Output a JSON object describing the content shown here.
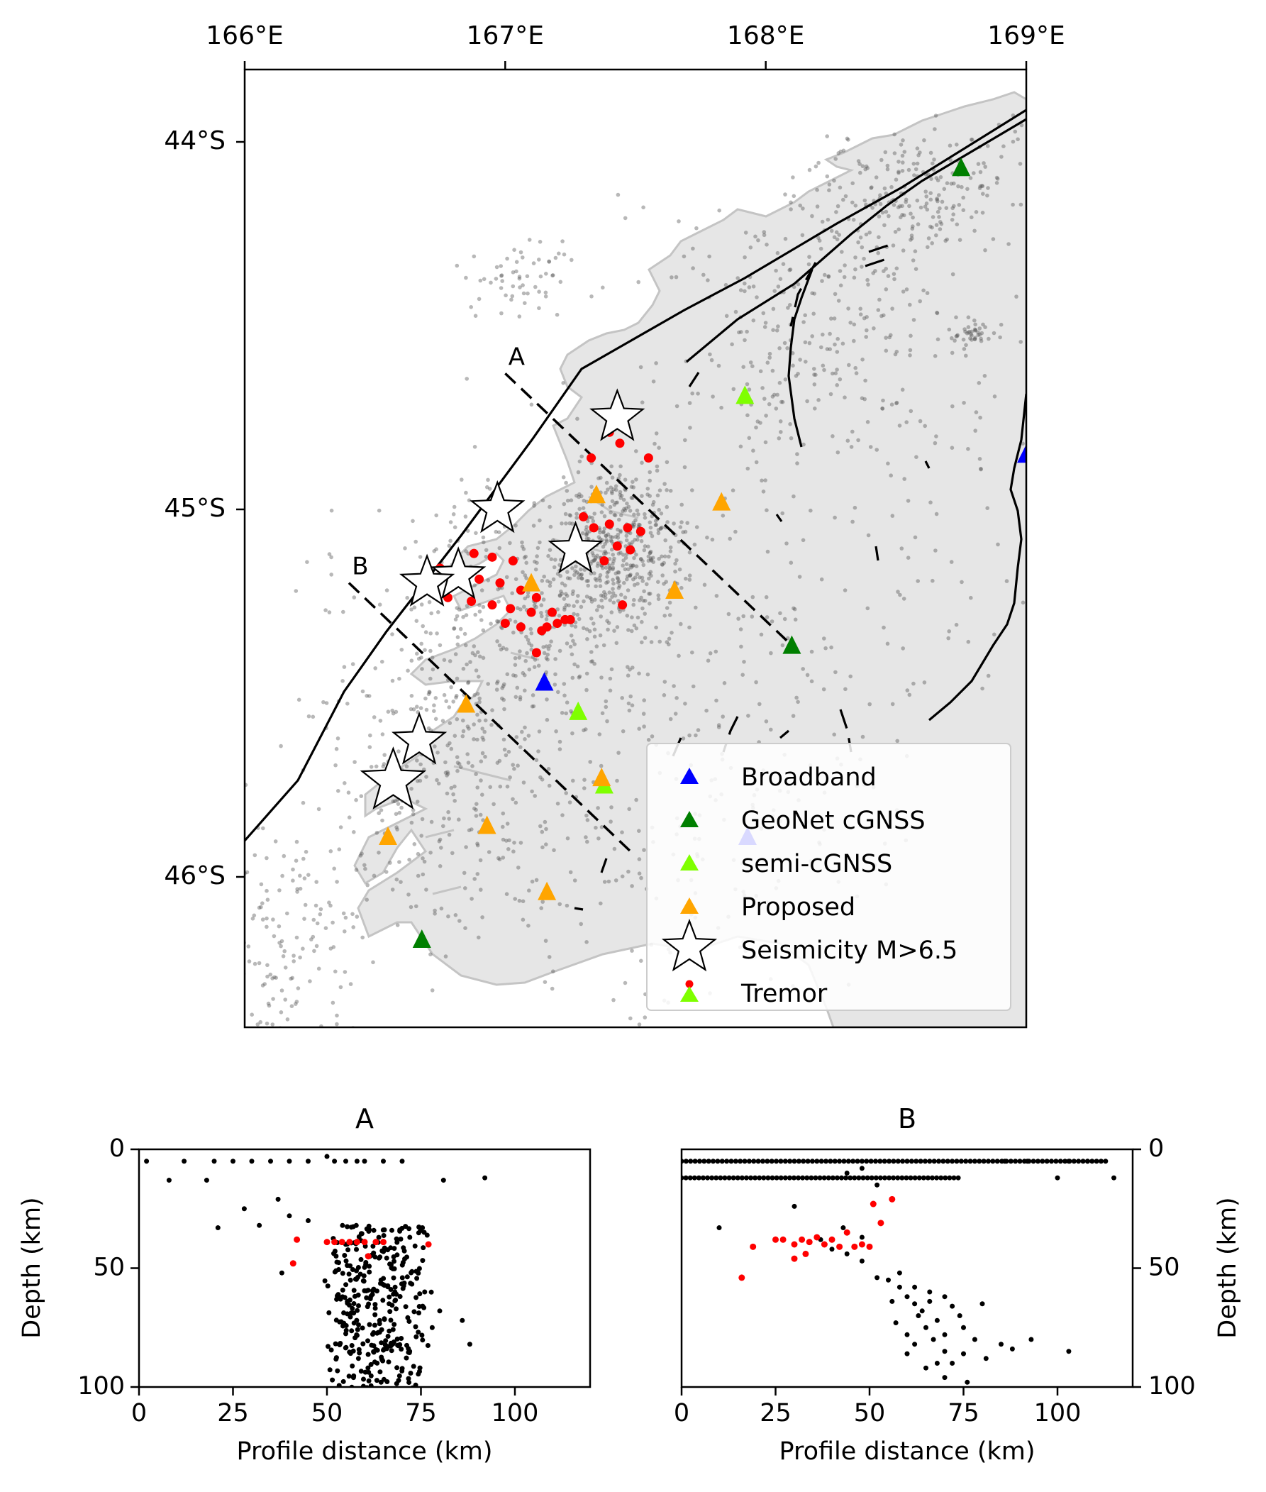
{
  "map": {
    "lon_range": [
      166,
      169
    ],
    "lat_range": [
      -46.4,
      -43.6
    ],
    "lon_ticks": [
      {
        "value": 166,
        "label": "166°E"
      },
      {
        "value": 167,
        "label": "167°E"
      },
      {
        "value": 168,
        "label": "168°E"
      },
      {
        "value": 169,
        "label": "169°E"
      }
    ],
    "lat_ticks": [
      {
        "value": -44,
        "label": "44°S"
      },
      {
        "value": -45,
        "label": "45°S"
      },
      {
        "value": -46,
        "label": "46°S"
      }
    ],
    "colors": {
      "land": "#e6e6e6",
      "coast": "#c4c4c4",
      "broadband": "#0000ff",
      "geonet": "#007f00",
      "semi": "#7fff00",
      "proposed": "#ffa500",
      "tremor": "#ff0000",
      "seismicity": "#555555"
    },
    "profiles": [
      {
        "label": "A",
        "start": [
          167.0,
          -44.63
        ],
        "end": [
          168.1,
          -45.37
        ]
      },
      {
        "label": "B",
        "start": [
          166.4,
          -45.2
        ],
        "end": [
          167.48,
          -45.93
        ]
      }
    ],
    "stations": {
      "broadband": [
        [
          167.15,
          -45.47
        ],
        [
          167.93,
          -45.89
        ],
        [
          169.0,
          -44.85
        ]
      ],
      "geonet": [
        [
          168.75,
          -44.07
        ],
        [
          168.1,
          -45.37
        ],
        [
          166.68,
          -46.17
        ]
      ],
      "semi": [
        [
          167.92,
          -44.69
        ],
        [
          167.28,
          -45.55
        ],
        [
          167.38,
          -45.75
        ]
      ],
      "proposed": [
        [
          167.35,
          -44.96
        ],
        [
          167.83,
          -44.98
        ],
        [
          167.1,
          -45.2
        ],
        [
          167.65,
          -45.22
        ],
        [
          166.85,
          -45.53
        ],
        [
          167.37,
          -45.73
        ],
        [
          166.55,
          -45.89
        ],
        [
          166.93,
          -45.86
        ],
        [
          167.16,
          -46.04
        ]
      ]
    },
    "large_events_m_gt_6_5": [
      [
        167.43,
        -44.75
      ],
      [
        166.97,
        -45.0
      ],
      [
        167.27,
        -45.11
      ],
      [
        166.82,
        -45.18
      ],
      [
        166.7,
        -45.2
      ],
      [
        166.67,
        -45.63
      ],
      [
        166.57,
        -45.74
      ]
    ],
    "tremor": [
      [
        167.4,
        -44.79
      ],
      [
        167.44,
        -44.82
      ],
      [
        167.33,
        -44.86
      ],
      [
        167.55,
        -44.86
      ],
      [
        167.3,
        -45.02
      ],
      [
        167.34,
        -45.05
      ],
      [
        167.4,
        -45.04
      ],
      [
        167.47,
        -45.05
      ],
      [
        167.52,
        -45.06
      ],
      [
        167.43,
        -45.1
      ],
      [
        167.48,
        -45.11
      ],
      [
        167.38,
        -45.14
      ],
      [
        166.88,
        -45.12
      ],
      [
        166.95,
        -45.13
      ],
      [
        167.03,
        -45.14
      ],
      [
        166.75,
        -45.16
      ],
      [
        166.82,
        -45.18
      ],
      [
        166.9,
        -45.19
      ],
      [
        166.98,
        -45.2
      ],
      [
        167.06,
        -45.22
      ],
      [
        167.12,
        -45.24
      ],
      [
        166.87,
        -45.25
      ],
      [
        166.95,
        -45.26
      ],
      [
        167.02,
        -45.27
      ],
      [
        167.1,
        -45.28
      ],
      [
        167.18,
        -45.28
      ],
      [
        167.23,
        -45.3
      ],
      [
        167.0,
        -45.31
      ],
      [
        167.06,
        -45.32
      ],
      [
        167.14,
        -45.33
      ],
      [
        167.25,
        -45.3
      ],
      [
        166.78,
        -45.24
      ],
      [
        167.45,
        -45.26
      ],
      [
        167.12,
        -45.39
      ],
      [
        167.2,
        -45.31
      ],
      [
        167.16,
        -45.32
      ]
    ],
    "legend": [
      {
        "key": "broadband",
        "label": "Broadband"
      },
      {
        "key": "geonet",
        "label": "GeoNet cGNSS"
      },
      {
        "key": "semi",
        "label": "semi-cGNSS"
      },
      {
        "key": "proposed",
        "label": "Proposed"
      },
      {
        "key": "star",
        "label": "Seismicity M>6.5"
      },
      {
        "key": "tremor",
        "label": "Tremor"
      }
    ]
  },
  "sections": [
    {
      "title": "A",
      "xlabel": "Profile distance (km)",
      "ylabel": "Depth (km)",
      "xlim": [
        0,
        120
      ],
      "ylim": [
        0,
        100
      ],
      "xticks": [
        0,
        25,
        50,
        75,
        100
      ],
      "yticks": [
        0,
        50,
        100
      ],
      "tremor": [
        [
          42,
          38
        ],
        [
          50,
          39
        ],
        [
          52,
          39
        ],
        [
          54,
          39
        ],
        [
          56,
          39
        ],
        [
          58,
          39
        ],
        [
          60,
          39
        ],
        [
          63,
          39
        ],
        [
          65,
          39
        ],
        [
          41,
          48
        ],
        [
          61,
          45
        ],
        [
          77,
          40
        ]
      ],
      "shallow": [
        [
          2,
          5
        ],
        [
          12,
          5
        ],
        [
          20,
          5
        ],
        [
          25,
          5
        ],
        [
          30,
          5
        ],
        [
          35,
          5
        ],
        [
          40,
          5
        ],
        [
          45,
          5
        ],
        [
          50,
          3
        ],
        [
          52,
          5
        ],
        [
          55,
          5
        ],
        [
          58,
          5
        ],
        [
          60,
          5
        ],
        [
          65,
          5
        ],
        [
          70,
          5
        ],
        [
          8,
          13
        ],
        [
          18,
          13
        ],
        [
          92,
          12
        ],
        [
          28,
          25
        ],
        [
          21,
          33
        ],
        [
          32,
          32
        ],
        [
          37,
          21
        ],
        [
          40,
          28
        ],
        [
          45,
          30
        ],
        [
          81,
          13
        ],
        [
          55,
          40
        ],
        [
          38,
          52
        ]
      ]
    },
    {
      "title": "B",
      "xlabel": "Profile distance (km)",
      "ylabel": "Depth (km)",
      "xlim": [
        0,
        120
      ],
      "ylim": [
        0,
        100
      ],
      "xticks": [
        0,
        25,
        50,
        75,
        100
      ],
      "yticks": [
        0,
        50,
        100
      ],
      "tremor": [
        [
          16,
          54
        ],
        [
          19,
          41
        ],
        [
          25,
          38
        ],
        [
          27,
          38
        ],
        [
          30,
          40
        ],
        [
          32,
          38
        ],
        [
          34,
          39
        ],
        [
          36,
          37
        ],
        [
          38,
          40
        ],
        [
          40,
          38
        ],
        [
          42,
          41
        ],
        [
          44,
          35
        ],
        [
          46,
          41
        ],
        [
          48,
          40
        ],
        [
          50,
          41
        ],
        [
          51,
          23
        ],
        [
          53,
          31
        ],
        [
          56,
          21
        ],
        [
          30,
          46
        ],
        [
          33,
          44
        ]
      ],
      "deep": [
        [
          55,
          55
        ],
        [
          58,
          58
        ],
        [
          60,
          62
        ],
        [
          62,
          65
        ],
        [
          63,
          70
        ],
        [
          65,
          75
        ],
        [
          67,
          80
        ],
        [
          70,
          85
        ],
        [
          72,
          90
        ],
        [
          66,
          60
        ],
        [
          64,
          68
        ],
        [
          68,
          72
        ],
        [
          60,
          78
        ],
        [
          72,
          66
        ],
        [
          75,
          75
        ],
        [
          78,
          80
        ],
        [
          80,
          65
        ],
        [
          85,
          82
        ],
        [
          88,
          84
        ],
        [
          93,
          80
        ],
        [
          103,
          85
        ],
        [
          58,
          52
        ],
        [
          62,
          58
        ],
        [
          66,
          64
        ],
        [
          70,
          62
        ],
        [
          74,
          70
        ],
        [
          56,
          64
        ],
        [
          52,
          54
        ],
        [
          48,
          47
        ],
        [
          44,
          44
        ],
        [
          40,
          42
        ],
        [
          37,
          38
        ],
        [
          43,
          33
        ],
        [
          48,
          37
        ],
        [
          10,
          33
        ],
        [
          30,
          24
        ],
        [
          60,
          86
        ],
        [
          65,
          92
        ],
        [
          70,
          96
        ],
        [
          76,
          98
        ],
        [
          81,
          88
        ],
        [
          57,
          73
        ],
        [
          62,
          82
        ],
        [
          70,
          78
        ],
        [
          75,
          86
        ],
        [
          68,
          90
        ]
      ]
    }
  ]
}
